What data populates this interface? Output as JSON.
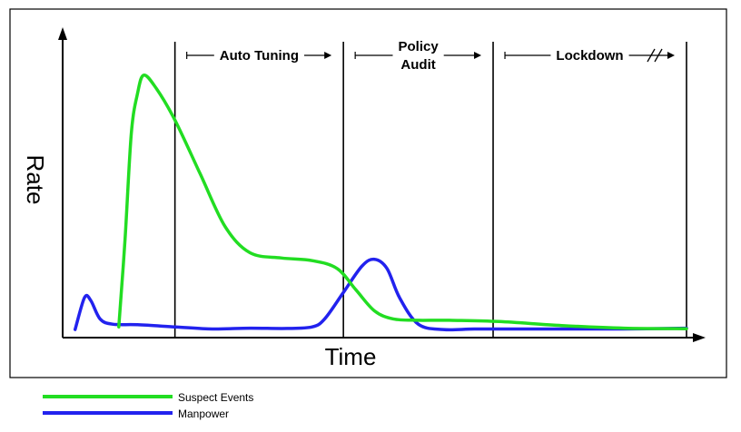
{
  "chart_data": {
    "type": "line",
    "xlabel": "Time",
    "ylabel": "Rate",
    "xlim": [
      0,
      100
    ],
    "ylim": [
      0,
      100
    ],
    "grid": false,
    "legend_position": "bottom-left",
    "phase_boundaries": [
      18,
      45,
      69,
      100
    ],
    "phases": [
      {
        "lines": [
          "Auto Tuning"
        ],
        "start": 18,
        "end": 45,
        "arrows": "both",
        "break_marker": false
      },
      {
        "lines": [
          "Policy",
          "Audit"
        ],
        "start": 45,
        "end": 69,
        "arrows": "both",
        "break_marker": false
      },
      {
        "lines": [
          "Lockdown"
        ],
        "start": 69,
        "end": 100,
        "arrows": "both",
        "break_marker": true
      }
    ],
    "series": [
      {
        "name": "Suspect Events",
        "color": "#22dd22",
        "x": [
          9,
          10,
          11,
          12,
          13,
          15,
          18,
          22,
          26,
          30,
          35,
          40,
          44,
          47,
          50,
          53,
          57,
          62,
          70,
          80,
          90,
          100
        ],
        "y": [
          2,
          35,
          75,
          90,
          97,
          92,
          80,
          60,
          40,
          30,
          28,
          27,
          24,
          16,
          8,
          5,
          4.5,
          4.5,
          4,
          2.5,
          1.5,
          1.3
        ]
      },
      {
        "name": "Manpower",
        "color": "#2222ee",
        "x": [
          2,
          3.5,
          4.5,
          6,
          8,
          12,
          18,
          24,
          30,
          36,
          40,
          42,
          45,
          48,
          50,
          52,
          54,
          57,
          61,
          66,
          72,
          80,
          90,
          100
        ],
        "y": [
          1,
          13,
          12,
          5,
          3,
          2.8,
          2,
          1.2,
          1.5,
          1.4,
          2,
          5,
          15,
          25,
          27.5,
          24,
          13,
          3,
          1,
          1.2,
          1.2,
          1.2,
          1.2,
          1.5
        ]
      }
    ]
  }
}
